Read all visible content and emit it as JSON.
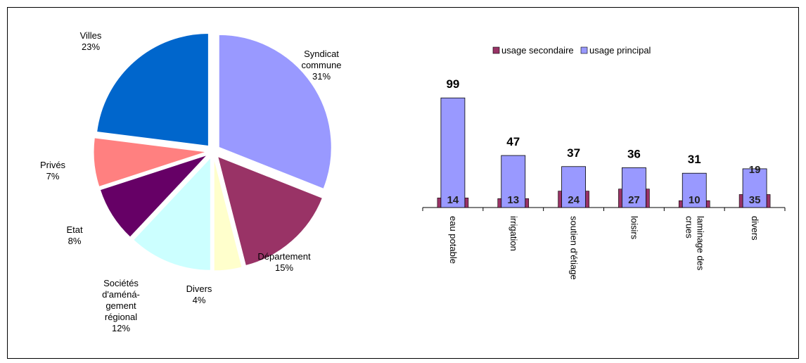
{
  "chart_data": [
    {
      "type": "pie",
      "slices": [
        {
          "label_lines": [
            "Syndicat",
            "commune"
          ],
          "pct_text": "31%",
          "value": 31,
          "color": "#9999ff"
        },
        {
          "label_lines": [
            "Département"
          ],
          "pct_text": "15%",
          "value": 15,
          "color": "#993366"
        },
        {
          "label_lines": [
            "Divers"
          ],
          "pct_text": "4%",
          "value": 4,
          "color": "#ffffcc"
        },
        {
          "label_lines": [
            "Sociétés",
            "d'améná-",
            "gement",
            "régional"
          ],
          "pct_text": "12%",
          "value": 12,
          "color": "#ccffff"
        },
        {
          "label_lines": [
            "Etat"
          ],
          "pct_text": "8%",
          "value": 8,
          "color": "#660066"
        },
        {
          "label_lines": [
            "Privés"
          ],
          "pct_text": "7%",
          "value": 7,
          "color": "#ff8080"
        },
        {
          "label_lines": [
            "Villes"
          ],
          "pct_text": "23%",
          "value": 23,
          "color": "#0066cc"
        }
      ]
    },
    {
      "type": "bar",
      "categories": [
        [
          "eau potable"
        ],
        [
          "irrigation"
        ],
        [
          "soutien d'étiage"
        ],
        [
          "loisirs"
        ],
        [
          "laminage des",
          "crues"
        ],
        [
          "divers"
        ]
      ],
      "series": [
        {
          "name": "usage secondaire",
          "values": [
            14,
            13,
            24,
            27,
            10,
            19
          ],
          "color": "#993366"
        },
        {
          "name": "usage principal",
          "values": [
            99,
            47,
            37,
            36,
            31,
            35
          ],
          "color": "#9999ff"
        }
      ],
      "totals": [
        99,
        47,
        37,
        36,
        31,
        null
      ],
      "ylim": [
        0,
        120
      ],
      "legend": "top"
    }
  ]
}
